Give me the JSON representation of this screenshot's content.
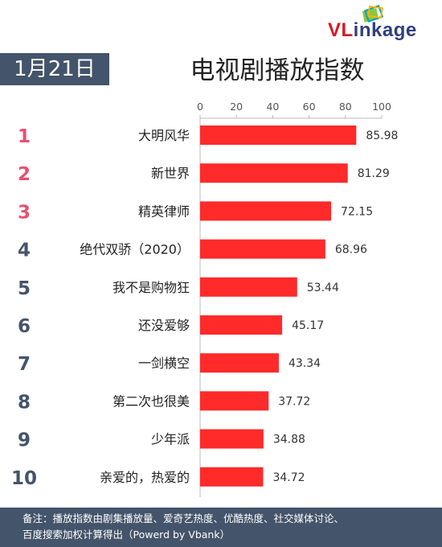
{
  "logo": {
    "brand_prefix": "VL",
    "brand_mid": "ink",
    "brand_suffix": "age",
    "icon": "linkage-frames-icon"
  },
  "date": "1月21日",
  "title": "电视剧播放指数",
  "colors": {
    "bar": "#ff2a2a",
    "top_rank": "#e8506f",
    "other_rank": "#44546a",
    "badge": "#44546a"
  },
  "chart_data": {
    "type": "bar",
    "orientation": "horizontal",
    "title": "电视剧播放指数",
    "xlim": [
      0,
      100
    ],
    "x_ticks": [
      0,
      20,
      40,
      60,
      80,
      100
    ],
    "grid": false,
    "ranks": [
      "1",
      "2",
      "3",
      "4",
      "5",
      "6",
      "7",
      "8",
      "9",
      "10"
    ],
    "categories": [
      "大明风华",
      "新世界",
      "精英律师",
      "绝代双骄（2020）",
      "我不是购物狂",
      "还没爱够",
      "一剑横空",
      "第二次也很美",
      "少年派",
      "亲爱的，热爱的"
    ],
    "values": [
      85.98,
      81.29,
      72.15,
      68.96,
      53.44,
      45.17,
      43.34,
      37.72,
      34.88,
      34.72
    ],
    "value_labels": [
      "85.98",
      "81.29",
      "72.15",
      "68.96",
      "53.44",
      "45.17",
      "43.34",
      "37.72",
      "34.88",
      "34.72"
    ]
  },
  "footer": {
    "line1": "备注：播放指数由剧集播放量、爱奇艺热度、优酷热度、社交媒体讨论、",
    "line2": "百度搜索加权计算得出（Powerd by Vbank）"
  }
}
